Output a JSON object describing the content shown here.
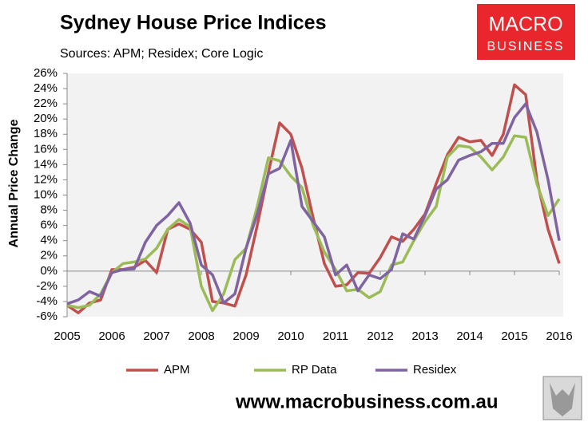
{
  "chart_data": {
    "type": "line",
    "title": "Sydney House Price Indices",
    "subtitle": "Sources: APM; Residex; Core Logic",
    "y_label": "Annual Price Change",
    "logo": {
      "line1": "MACRO",
      "line2": "BUSINESS"
    },
    "footer": "www.macrobusiness.com.au",
    "x": [
      2005,
      2005.25,
      2005.5,
      2005.75,
      2006,
      2006.25,
      2006.5,
      2006.75,
      2007,
      2007.25,
      2007.5,
      2007.75,
      2008,
      2008.25,
      2008.5,
      2008.75,
      2009,
      2009.25,
      2009.5,
      2009.75,
      2010,
      2010.25,
      2010.5,
      2010.75,
      2011,
      2011.25,
      2011.5,
      2011.75,
      2012,
      2012.25,
      2012.5,
      2012.75,
      2013,
      2013.25,
      2013.5,
      2013.75,
      2014,
      2014.25,
      2014.5,
      2014.75,
      2015,
      2015.25,
      2015.5,
      2015.75,
      2016
    ],
    "series": [
      {
        "name": "APM",
        "color": "#c0504d",
        "values": [
          -4.5,
          -5.5,
          -4.2,
          -3.8,
          0.2,
          0.2,
          0.5,
          1.4,
          -0.2,
          5.5,
          6.2,
          5.5,
          3.8,
          -4,
          -4.2,
          -4.6,
          -0.5,
          6,
          13,
          19.5,
          18,
          13.5,
          7,
          1,
          -2,
          -1.8,
          -0.2,
          -0.3,
          1.8,
          4.5,
          3.9,
          5.5,
          7.5,
          11.5,
          15.3,
          17.6,
          17,
          17.2,
          15.2,
          18,
          24.5,
          23.2,
          12,
          5.5,
          1
        ]
      },
      {
        "name": "RP Data",
        "color": "#9bbb59",
        "values": [
          -4.5,
          -4.8,
          -4.5,
          -3,
          -0.2,
          1,
          1.2,
          1.6,
          3,
          5.5,
          6.8,
          5.8,
          -2,
          -5.2,
          -3,
          1.5,
          3,
          8.5,
          14.9,
          14.5,
          12.5,
          11,
          6,
          2.5,
          0.2,
          -2.6,
          -2.4,
          -3.5,
          -2.7,
          0.8,
          1.2,
          4,
          6.5,
          8.5,
          15,
          16.5,
          16.3,
          15,
          13.3,
          15,
          17.8,
          17.6,
          11.5,
          7.3,
          9.5
        ]
      },
      {
        "name": "Residex",
        "color": "#8064a2",
        "values": [
          -4.3,
          -3.8,
          -2.7,
          -3.3,
          -0.2,
          0.2,
          0.3,
          3.8,
          6,
          7.3,
          9,
          6.3,
          0.8,
          -0.5,
          -4.2,
          -3,
          3,
          7.5,
          12.8,
          13.5,
          17.2,
          8.5,
          6.5,
          4.5,
          -0.5,
          0.8,
          -2.6,
          -0.5,
          -1,
          0.2,
          4.9,
          4.2,
          7.3,
          10.8,
          12,
          14.6,
          15.2,
          15.7,
          16.8,
          16.8,
          20.2,
          22,
          18.3,
          12,
          4
        ]
      }
    ],
    "xlim": [
      2005,
      2016
    ],
    "xticks": [
      2005,
      2006,
      2007,
      2008,
      2009,
      2010,
      2011,
      2012,
      2013,
      2014,
      2015,
      2016
    ],
    "ylim": [
      -6,
      26
    ],
    "yticks": [
      {
        "value": -6,
        "label": "-6%"
      },
      {
        "value": -4,
        "label": "-4%"
      },
      {
        "value": -2,
        "label": "-2%"
      },
      {
        "value": 0,
        "label": "0%"
      },
      {
        "value": 2,
        "label": "2%"
      },
      {
        "value": 4,
        "label": "4%"
      },
      {
        "value": 6,
        "label": "6%"
      },
      {
        "value": 8,
        "label": "8%"
      },
      {
        "value": 10,
        "label": "10%"
      },
      {
        "value": 12,
        "label": "12%"
      },
      {
        "value": 14,
        "label": "14%"
      },
      {
        "value": 16,
        "label": "16%"
      },
      {
        "value": 18,
        "label": "18%"
      },
      {
        "value": 20,
        "label": "20%"
      },
      {
        "value": 22,
        "label": "22%"
      },
      {
        "value": 24,
        "label": "24%"
      },
      {
        "value": 26,
        "label": "26%"
      }
    ],
    "grid": false,
    "legend": "bottom"
  }
}
